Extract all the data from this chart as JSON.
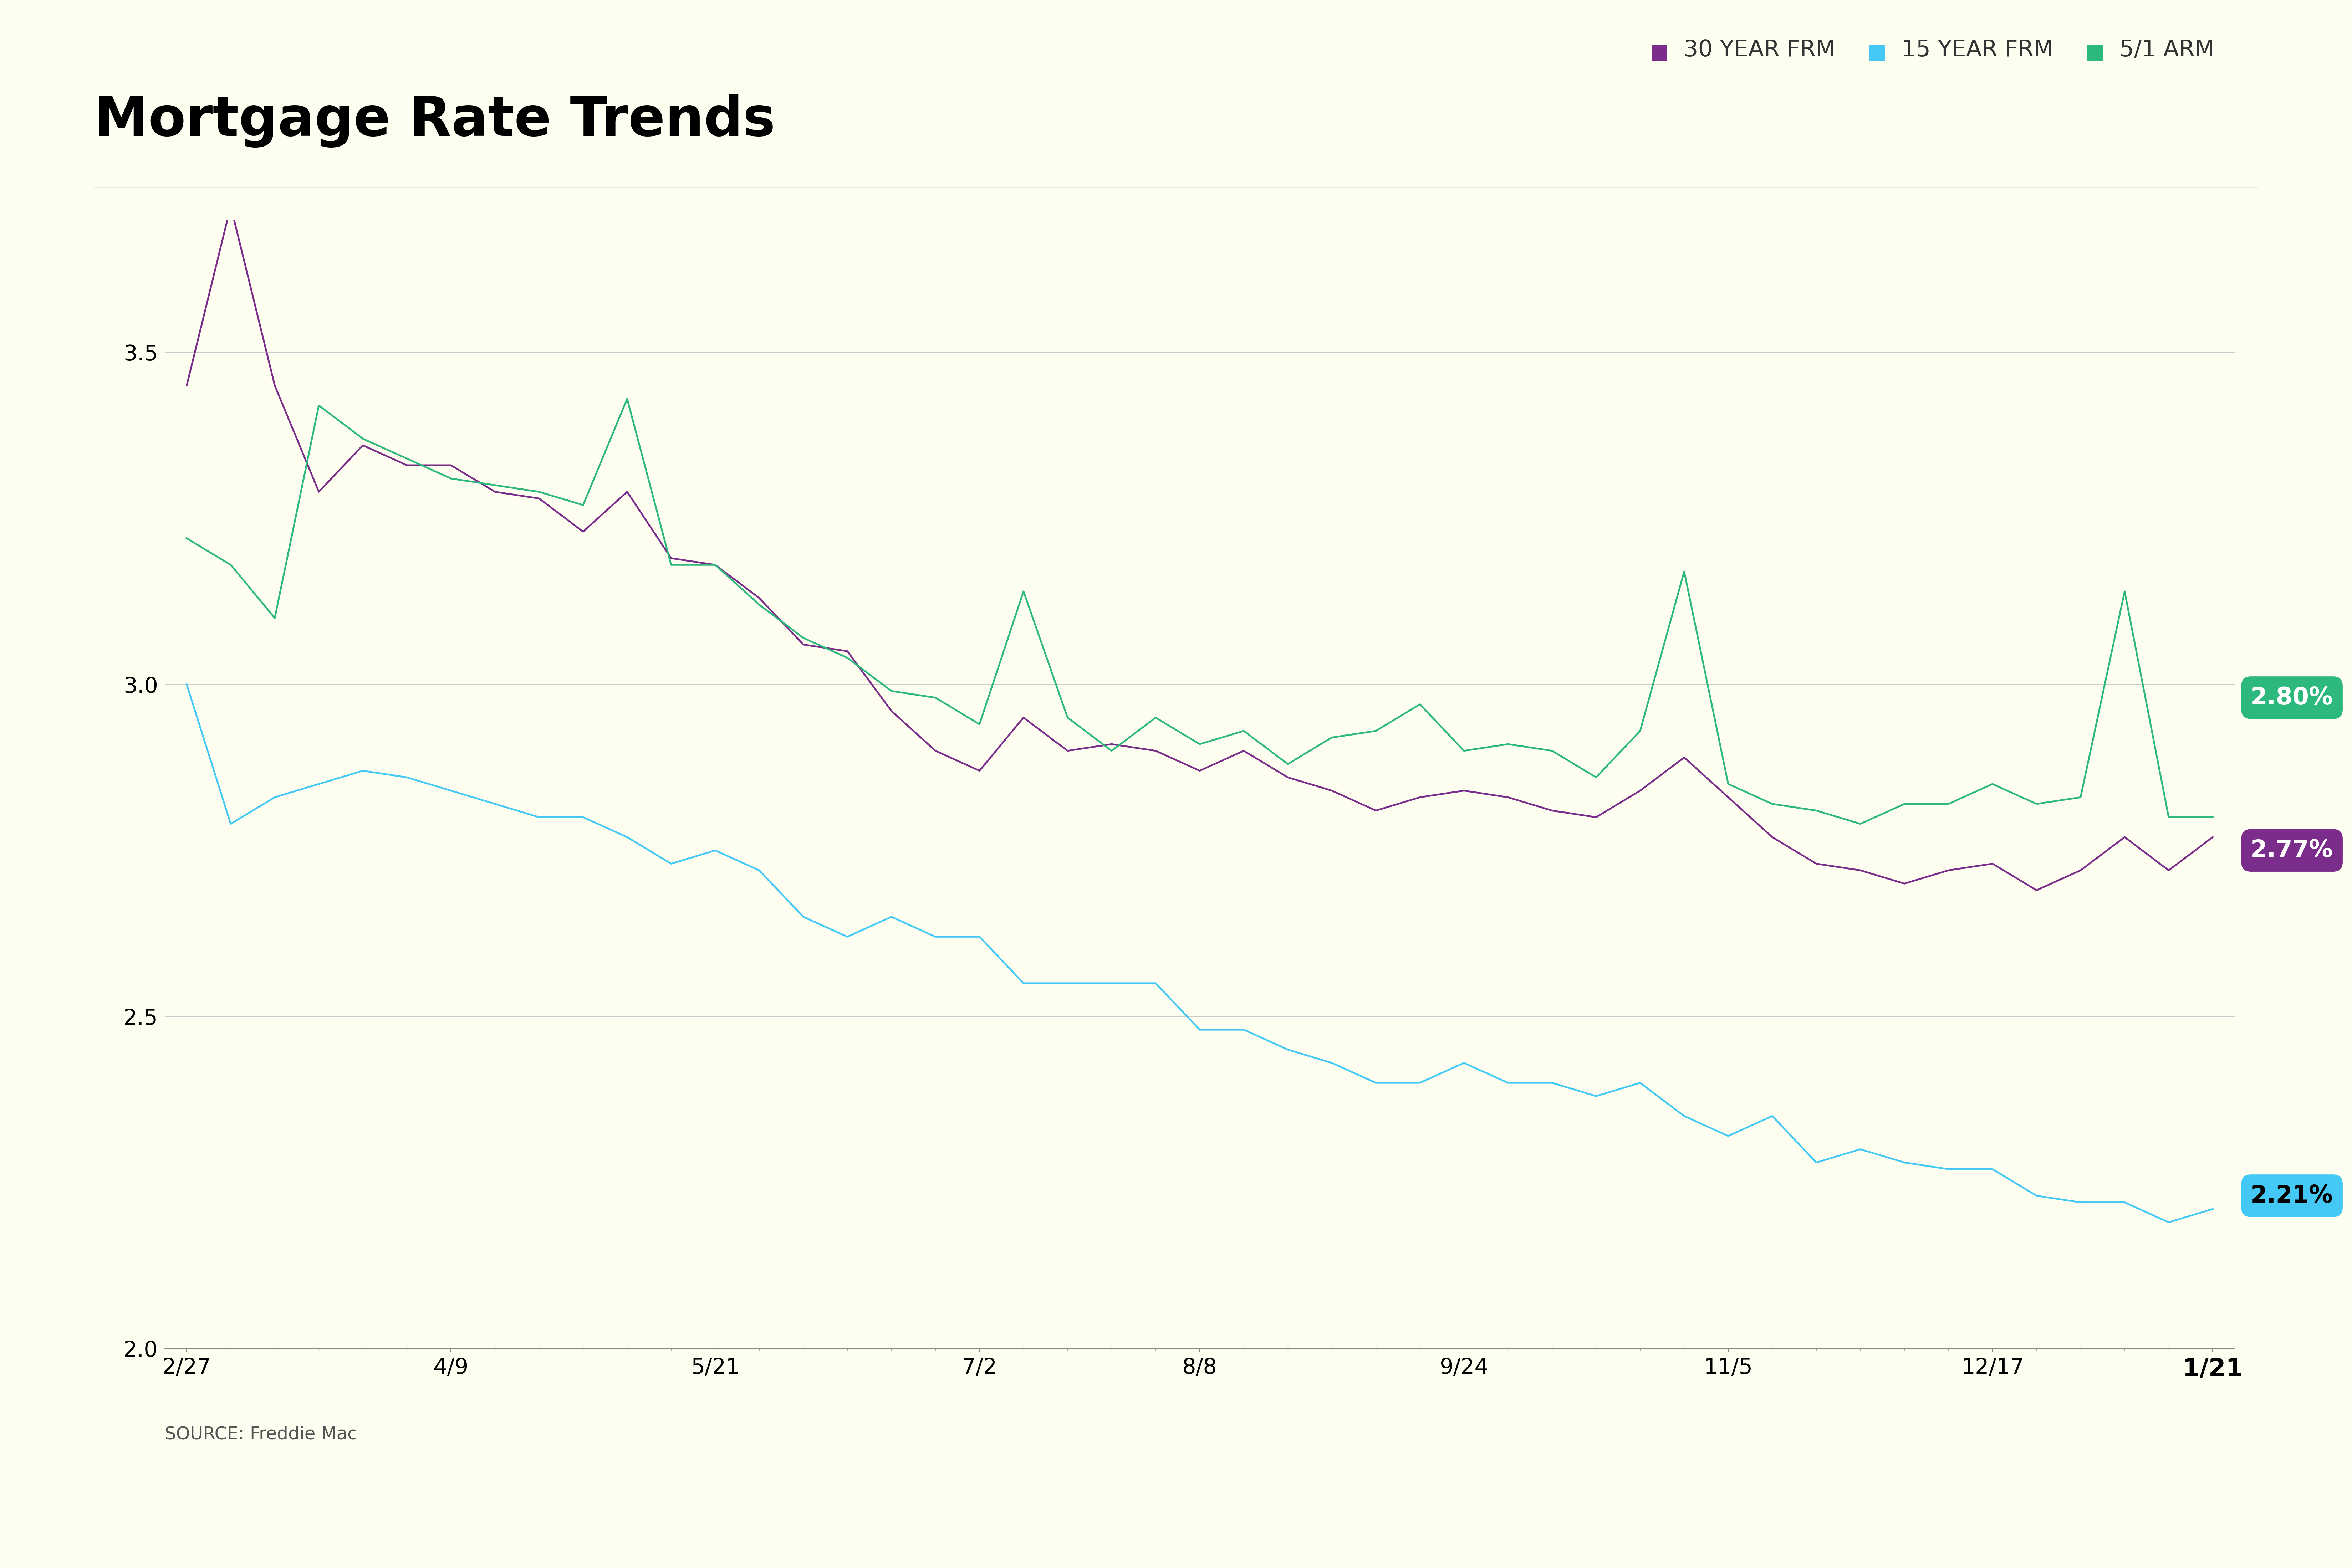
{
  "title": "Mortgage Rate Trends",
  "background_color": "#FDFEF0",
  "source_text": "SOURCE: Freddie Mac",
  "x_labels": [
    "2/27",
    "4/9",
    "5/21",
    "7/2",
    "8/8",
    "9/24",
    "11/5",
    "12/17",
    "1/21"
  ],
  "x_positions": [
    0,
    6,
    12,
    18,
    23,
    29,
    35,
    41,
    46
  ],
  "ylim": [
    2.0,
    3.7
  ],
  "yticks": [
    2.0,
    2.5,
    3.0,
    3.5
  ],
  "legend_labels": [
    "30 YEAR FRM",
    "15 YEAR FRM",
    "5/1 ARM"
  ],
  "legend_colors": [
    "#7B2D8B",
    "#44C8F5",
    "#2DB87D"
  ],
  "line_30yr": [
    3.45,
    3.72,
    3.45,
    3.29,
    3.36,
    3.33,
    3.33,
    3.29,
    3.28,
    3.23,
    3.29,
    3.19,
    3.18,
    3.13,
    3.06,
    3.05,
    2.96,
    2.9,
    2.87,
    2.95,
    2.9,
    2.91,
    2.9,
    2.87,
    2.9,
    2.86,
    2.84,
    2.81,
    2.83,
    2.84,
    2.83,
    2.81,
    2.8,
    2.84,
    2.89,
    2.83,
    2.77,
    2.73,
    2.72,
    2.7,
    2.72,
    2.73,
    2.69,
    2.72,
    2.77,
    2.72,
    2.77
  ],
  "line_15yr": [
    3.0,
    2.79,
    2.83,
    2.85,
    2.87,
    2.86,
    2.84,
    2.82,
    2.8,
    2.8,
    2.77,
    2.73,
    2.75,
    2.72,
    2.65,
    2.62,
    2.65,
    2.62,
    2.62,
    2.55,
    2.55,
    2.55,
    2.55,
    2.48,
    2.48,
    2.45,
    2.43,
    2.4,
    2.4,
    2.43,
    2.4,
    2.4,
    2.38,
    2.4,
    2.35,
    2.32,
    2.35,
    2.28,
    2.3,
    2.28,
    2.27,
    2.27,
    2.23,
    2.22,
    2.22,
    2.19,
    2.21
  ],
  "line_arm": [
    3.22,
    3.18,
    3.1,
    3.42,
    3.37,
    3.34,
    3.31,
    3.3,
    3.29,
    3.27,
    3.43,
    3.18,
    3.18,
    3.12,
    3.07,
    3.04,
    2.99,
    2.98,
    2.94,
    3.14,
    2.95,
    2.9,
    2.95,
    2.91,
    2.93,
    2.88,
    2.92,
    2.93,
    2.97,
    2.9,
    2.91,
    2.9,
    2.86,
    2.93,
    3.17,
    2.85,
    2.82,
    2.81,
    2.79,
    2.82,
    2.82,
    2.85,
    2.82,
    2.83,
    3.14,
    2.8,
    2.8
  ],
  "end_label_30yr": "2.77%",
  "end_label_15yr": "2.21%",
  "end_label_arm": "2.80%",
  "color_30yr": "#7B2D8B",
  "color_15yr": "#44C8F5",
  "color_arm": "#2DB87D",
  "line_width": 3.5
}
